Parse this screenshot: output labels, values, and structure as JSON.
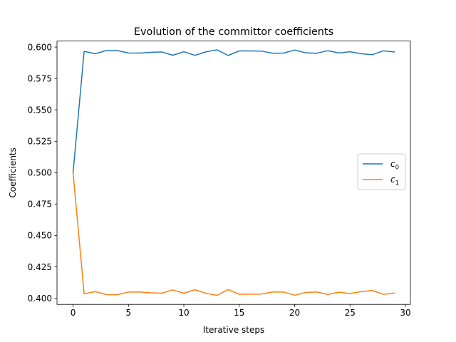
{
  "chart_data": {
    "type": "line",
    "title": "Evolution of the committor coefficients",
    "xlabel": "Iterative steps",
    "ylabel": "Coefficients",
    "xlim": [
      -1.45,
      30.45
    ],
    "ylim": [
      0.3951,
      0.6048
    ],
    "x_ticks": [
      0,
      5,
      10,
      15,
      20,
      25,
      30
    ],
    "x_tick_labels": [
      "0",
      "5",
      "10",
      "15",
      "20",
      "25",
      "30"
    ],
    "y_ticks": [
      0.4,
      0.425,
      0.45,
      0.475,
      0.5,
      0.525,
      0.55,
      0.575,
      0.6
    ],
    "y_tick_labels": [
      "0.400",
      "0.425",
      "0.450",
      "0.475",
      "0.500",
      "0.525",
      "0.550",
      "0.575",
      "0.600"
    ],
    "grid": false,
    "legend_position": "center-right",
    "x": [
      0,
      1,
      2,
      3,
      4,
      5,
      6,
      7,
      8,
      9,
      10,
      11,
      12,
      13,
      14,
      15,
      16,
      17,
      18,
      19,
      20,
      21,
      22,
      23,
      24,
      25,
      26,
      27,
      28,
      29
    ],
    "series": [
      {
        "name_base": "c",
        "name_sub": "0",
        "color": "#1f77b4",
        "values": [
          0.5,
          0.5966,
          0.5947,
          0.5972,
          0.5972,
          0.5953,
          0.5952,
          0.5958,
          0.5961,
          0.5935,
          0.5963,
          0.5934,
          0.5962,
          0.5978,
          0.5933,
          0.5969,
          0.5969,
          0.5968,
          0.5951,
          0.5952,
          0.5976,
          0.5954,
          0.5951,
          0.5971,
          0.5953,
          0.5963,
          0.5947,
          0.5939,
          0.597,
          0.5961
        ]
      },
      {
        "name_base": "c",
        "name_sub": "1",
        "color": "#ff7f0e",
        "values": [
          0.5,
          0.4035,
          0.4053,
          0.4029,
          0.4028,
          0.4049,
          0.405,
          0.4043,
          0.404,
          0.4066,
          0.404,
          0.4067,
          0.4039,
          0.4023,
          0.4069,
          0.4031,
          0.4032,
          0.4033,
          0.405,
          0.4049,
          0.4024,
          0.4046,
          0.405,
          0.403,
          0.4048,
          0.4038,
          0.4052,
          0.4062,
          0.4031,
          0.4041
        ]
      }
    ]
  }
}
